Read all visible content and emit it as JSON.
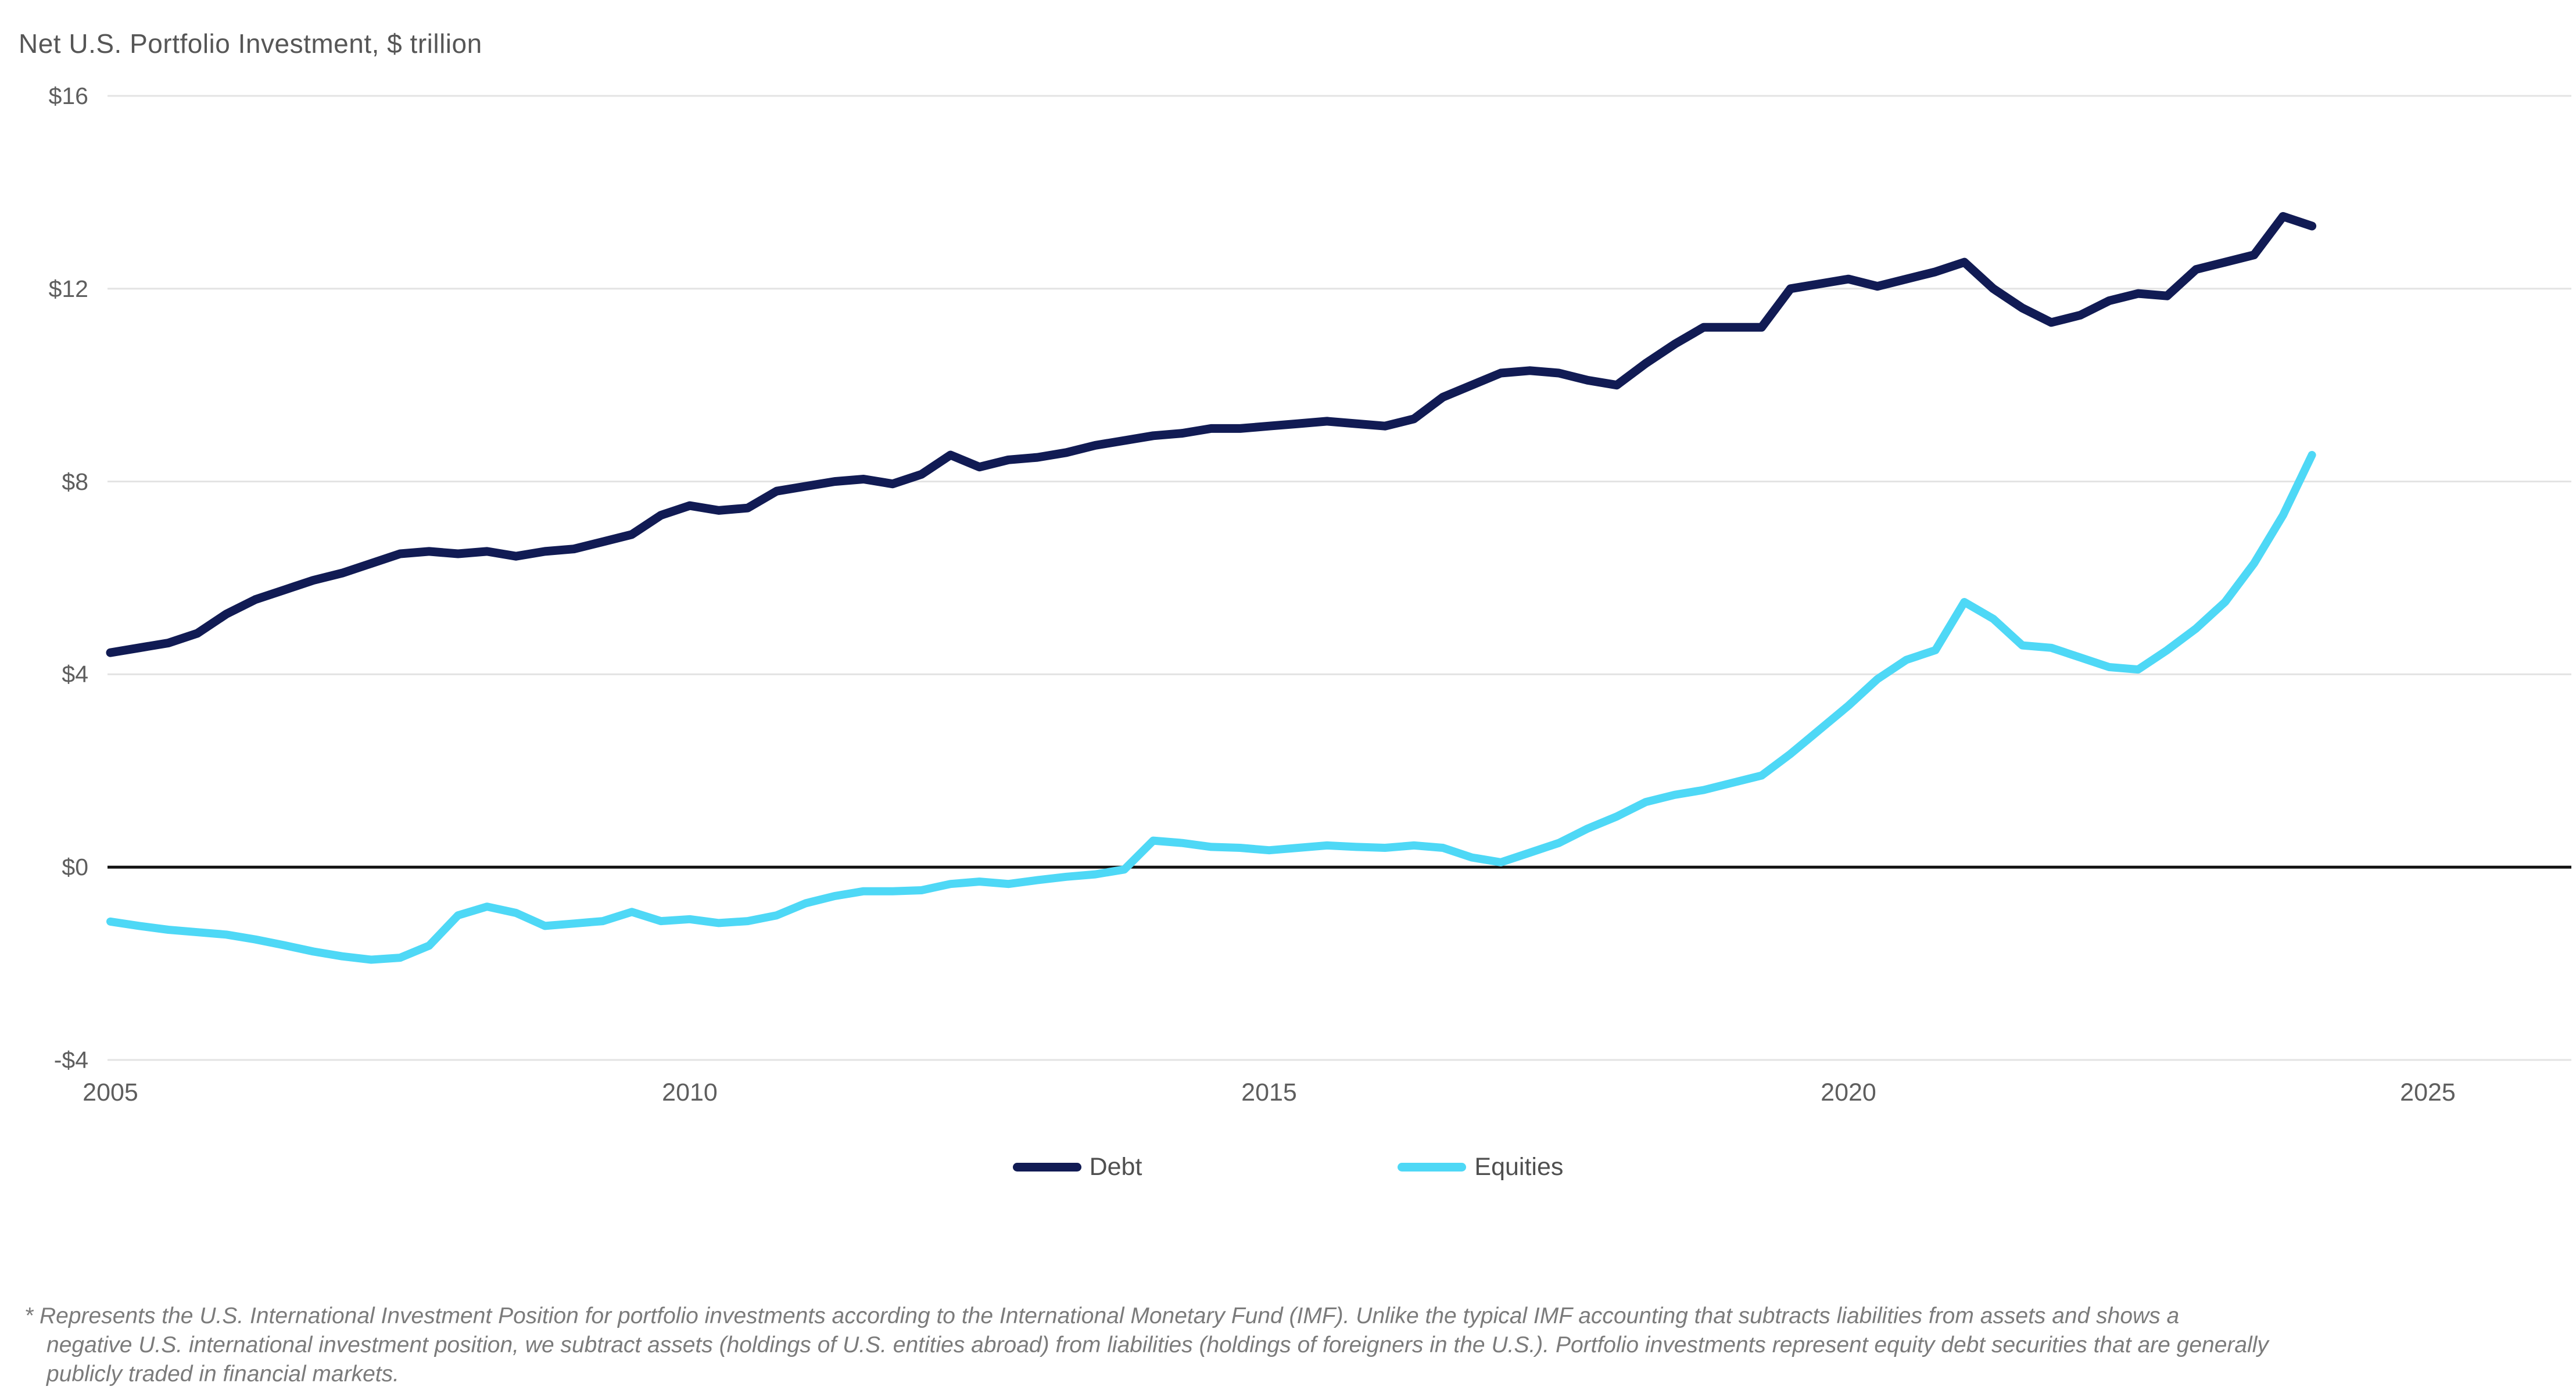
{
  "title": "Net U.S. Portfolio Investment, $ trillion",
  "legend": [
    {
      "label": "Debt",
      "color": "#111b54"
    },
    {
      "label": "Equities",
      "color": "#4ed8f6"
    }
  ],
  "footnote": {
    "lines": [
      "* Represents the U.S. International Investment Position for portfolio investments according to the International Monetary Fund (IMF). Unlike the typical IMF accounting that subtracts liabilities from assets and shows a",
      "negative U.S. international investment position, we subtract assets (holdings of U.S. entities abroad) from liabilities (holdings of foreigners in the U.S.). Portfolio investments represent equity debt securities that are generally",
      "publicly traded in financial markets."
    ]
  },
  "chart_data": {
    "type": "line",
    "title": "Net U.S. Portfolio Investment, $ trillion",
    "xlabel": "",
    "ylabel": "$ trillion",
    "x_tick_values": [
      2005,
      2010,
      2015,
      2020,
      2025
    ],
    "x_tick_labels": [
      "2005",
      "2010",
      "2015",
      "2020",
      "2025"
    ],
    "y_tick_values": [
      16,
      12,
      8,
      4,
      0,
      -4
    ],
    "y_tick_labels": [
      "$16",
      "$12",
      "$8",
      "$4",
      "$0",
      "-$4"
    ],
    "ylim": [
      -4,
      16
    ],
    "xlim": [
      2005,
      2026.2
    ],
    "grid": true,
    "grid_color": "#e3e3e3",
    "zero_axis_color": "#141414",
    "legend_position": "bottom",
    "x_start_year": 2005,
    "x_step_years": 0.25,
    "frequency": "quarterly",
    "series": [
      {
        "name": "Debt",
        "color": "#111b54",
        "values": [
          4.45,
          4.55,
          4.65,
          4.85,
          5.25,
          5.55,
          5.75,
          5.95,
          6.1,
          6.3,
          6.5,
          6.55,
          6.5,
          6.55,
          6.45,
          6.55,
          6.6,
          6.75,
          6.9,
          7.3,
          7.5,
          7.4,
          7.45,
          7.8,
          7.9,
          8.0,
          8.05,
          7.95,
          8.15,
          8.55,
          8.3,
          8.45,
          8.5,
          8.6,
          8.75,
          8.85,
          8.95,
          9.0,
          9.1,
          9.1,
          9.15,
          9.2,
          9.25,
          9.2,
          9.15,
          9.3,
          9.75,
          10.0,
          10.25,
          10.3,
          10.25,
          10.1,
          10.0,
          10.45,
          10.85,
          11.2,
          11.2,
          11.2,
          12.0,
          12.1,
          12.2,
          12.05,
          12.2,
          12.35,
          12.55,
          12.0,
          11.6,
          11.3,
          11.45,
          11.75,
          11.9,
          11.85,
          12.4,
          12.55,
          12.7,
          13.5,
          13.3
        ]
      },
      {
        "name": "Equities",
        "color": "#4ed8f6",
        "values": [
          -1.13,
          -1.22,
          -1.3,
          -1.35,
          -1.4,
          -1.5,
          -1.62,
          -1.75,
          -1.85,
          -1.92,
          -1.88,
          -1.63,
          -1.0,
          -0.82,
          -0.95,
          -1.22,
          -1.17,
          -1.12,
          -0.93,
          -1.12,
          -1.08,
          -1.16,
          -1.12,
          -1.0,
          -0.75,
          -0.6,
          -0.5,
          -0.5,
          -0.48,
          -0.35,
          -0.3,
          -0.35,
          -0.27,
          -0.2,
          -0.15,
          -0.05,
          0.55,
          0.5,
          0.42,
          0.4,
          0.35,
          0.4,
          0.45,
          0.42,
          0.4,
          0.45,
          0.4,
          0.2,
          0.1,
          0.3,
          0.5,
          0.8,
          1.05,
          1.35,
          1.5,
          1.6,
          1.75,
          1.9,
          2.35,
          2.85,
          3.35,
          3.9,
          4.3,
          4.5,
          5.5,
          5.15,
          4.6,
          4.55,
          4.35,
          4.15,
          4.1,
          4.5,
          4.95,
          5.5,
          6.3,
          7.3,
          8.55
        ]
      }
    ]
  }
}
